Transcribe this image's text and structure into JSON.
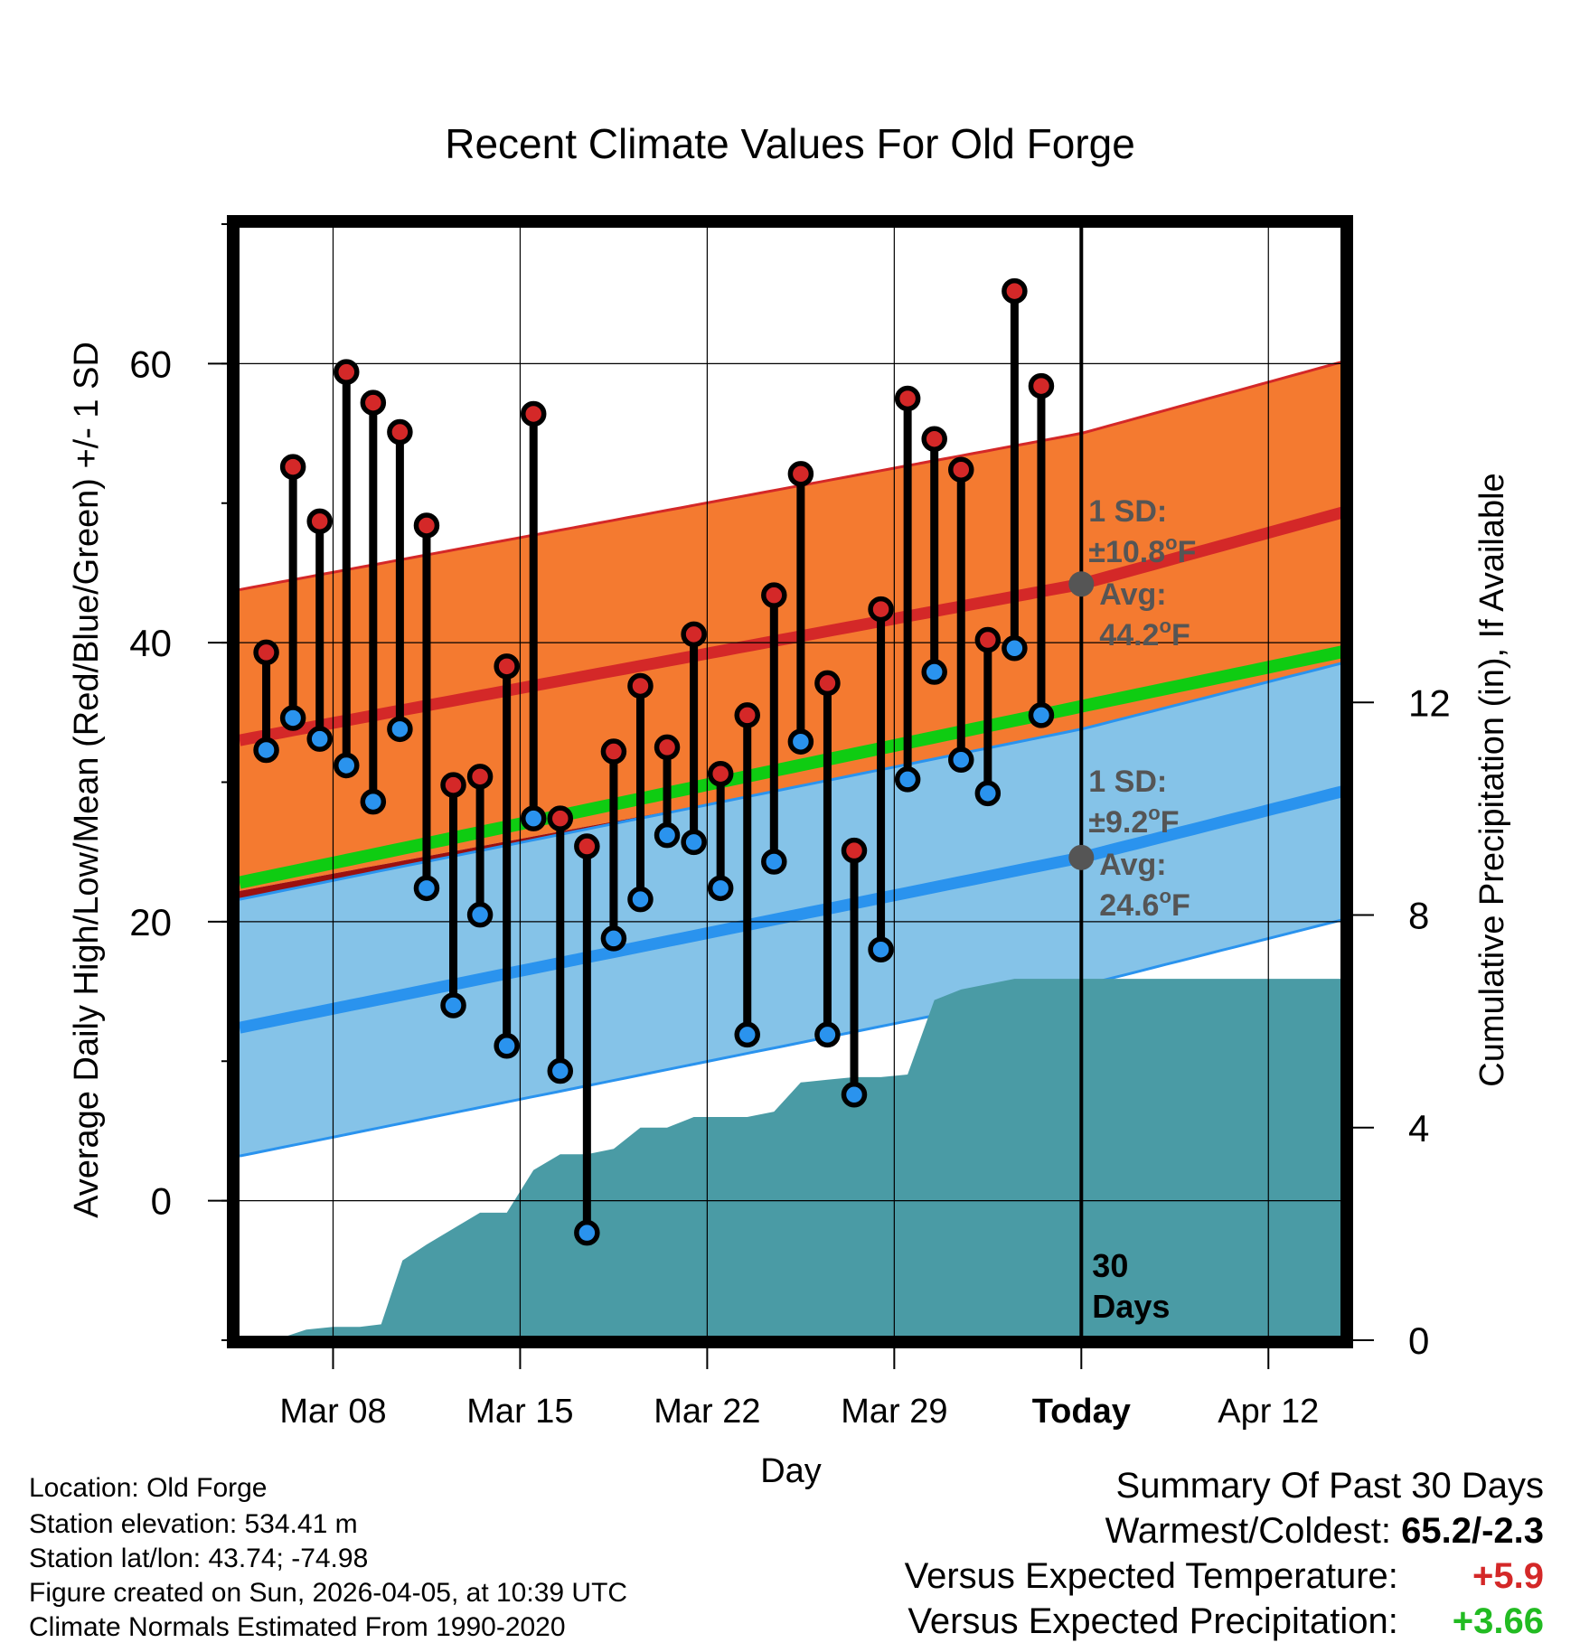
{
  "chart_data": {
    "type": "line",
    "title": "Recent Climate Values For Old Forge",
    "xlabel": "Day",
    "ylabel": "Average Daily High/Low/Mean (Red/Blue/Green) +/- 1 SD",
    "y2label": "Cumulative Precipitation (in), If Available",
    "ylim": [
      -10,
      70
    ],
    "y2lim": [
      0,
      21
    ],
    "y_ticks": [
      "0",
      "20",
      "40",
      "60"
    ],
    "y2_ticks": [
      "0",
      "4",
      "8",
      "12"
    ],
    "x_range_days": [
      0,
      41.4
    ],
    "x_ticks": [
      {
        "label": "Mar 08",
        "day": 3.5
      },
      {
        "label": "Mar 15",
        "day": 10.5
      },
      {
        "label": "Mar 22",
        "day": 17.5
      },
      {
        "label": "Mar 29",
        "day": 24.5
      },
      {
        "label": "Today",
        "day": 31.5
      },
      {
        "label": "Apr 12",
        "day": 38.5
      }
    ],
    "today_day": 31.5,
    "period_label": [
      "30",
      "Days"
    ],
    "days": [
      1,
      2,
      3,
      4,
      5,
      6,
      7,
      8,
      9,
      10,
      11,
      12,
      13,
      14,
      15,
      16,
      17,
      18,
      19,
      20,
      21,
      22,
      23,
      24,
      25,
      26,
      27,
      28,
      29,
      30
    ],
    "highs": [
      39.3,
      52.6,
      48.7,
      59.4,
      57.2,
      55.1,
      48.4,
      29.8,
      30.4,
      38.3,
      56.4,
      27.4,
      25.4,
      32.2,
      36.9,
      32.5,
      40.6,
      30.6,
      34.8,
      43.4,
      52.1,
      37.1,
      25.1,
      42.4,
      57.5,
      54.6,
      52.4,
      40.2,
      65.2,
      58.4
    ],
    "lows": [
      32.3,
      34.6,
      33.1,
      31.2,
      28.6,
      33.8,
      22.4,
      14.0,
      20.5,
      11.1,
      27.4,
      9.3,
      -2.3,
      18.8,
      21.6,
      26.2,
      25.7,
      22.4,
      11.9,
      24.3,
      32.9,
      11.9,
      7.6,
      18.0,
      30.2,
      37.9,
      31.6,
      29.2,
      39.6,
      34.8
    ],
    "normal_high": {
      "x": [
        0,
        31.5,
        41.4
      ],
      "avg": [
        33.0,
        44.2,
        49.4
      ],
      "sd": 10.8,
      "avg_label": "44.2",
      "sd_label": "10.8"
    },
    "normal_low": {
      "x": [
        0,
        31.5,
        41.4
      ],
      "avg": [
        12.4,
        24.6,
        29.4
      ],
      "sd": 9.2,
      "avg_label": "24.6",
      "sd_label": "9.2"
    },
    "normal_mean": {
      "x": [
        0,
        41.4
      ],
      "values": [
        22.8,
        39.4
      ]
    },
    "cumulative_precip": {
      "x": [
        1.3,
        2.5,
        3.5,
        4.5,
        5.3,
        6.1,
        7.0,
        8.0,
        9.0,
        10.0,
        11.0,
        12.0,
        13.0,
        14.0,
        15.0,
        16.0,
        17.0,
        18.0,
        19.0,
        20.0,
        21.0,
        22.0,
        23.0,
        24.0,
        25.0,
        26.0,
        27.0,
        28.0,
        29.0,
        30.0,
        31.0,
        31.5,
        41.4
      ],
      "values": [
        0.0,
        0.2,
        0.25,
        0.25,
        0.3,
        1.5,
        1.8,
        2.1,
        2.4,
        2.4,
        3.2,
        3.5,
        3.5,
        3.6,
        4.0,
        4.0,
        4.2,
        4.2,
        4.2,
        4.3,
        4.85,
        4.9,
        4.95,
        4.95,
        5.0,
        6.4,
        6.6,
        6.7,
        6.8,
        6.8,
        6.8,
        6.8,
        6.8
      ]
    },
    "labels": {
      "sd_prefix": "1 SD:",
      "avg_prefix": "Avg:",
      "pm": "±",
      "unit_deg": "o",
      "unit_f": "F"
    },
    "colors": {
      "high_band": "#f47a30",
      "high_line": "#d42828",
      "low_band": "#85c3e8",
      "low_line": "#2a93ee",
      "mean_line": "#0fcc12",
      "overlap": "#9c1010",
      "precip": "#4a9ba5",
      "high_dot": "#d42828",
      "low_dot": "#2a93ee",
      "annotation": "#555555"
    }
  },
  "station": {
    "location": "Location: Old Forge",
    "elevation": "Station elevation: 534.41 m",
    "latlon": "Station lat/lon: 43.74; -74.98",
    "created": "Figure created on Sun, 2026-04-05, at 10:39 UTC",
    "normals": "Climate Normals Estimated From 1990-2020"
  },
  "summary": {
    "title": "Summary Of Past 30 Days",
    "warm_cold_label": "Warmest/Coldest:",
    "warm_cold_value": "65.2/-2.3",
    "temp_label": "Versus Expected Temperature:",
    "temp_value": "+5.9",
    "temp_color": "#d42828",
    "precip_label": "Versus Expected Precipitation:",
    "precip_value": "+3.66",
    "precip_color": "#22bb22"
  }
}
